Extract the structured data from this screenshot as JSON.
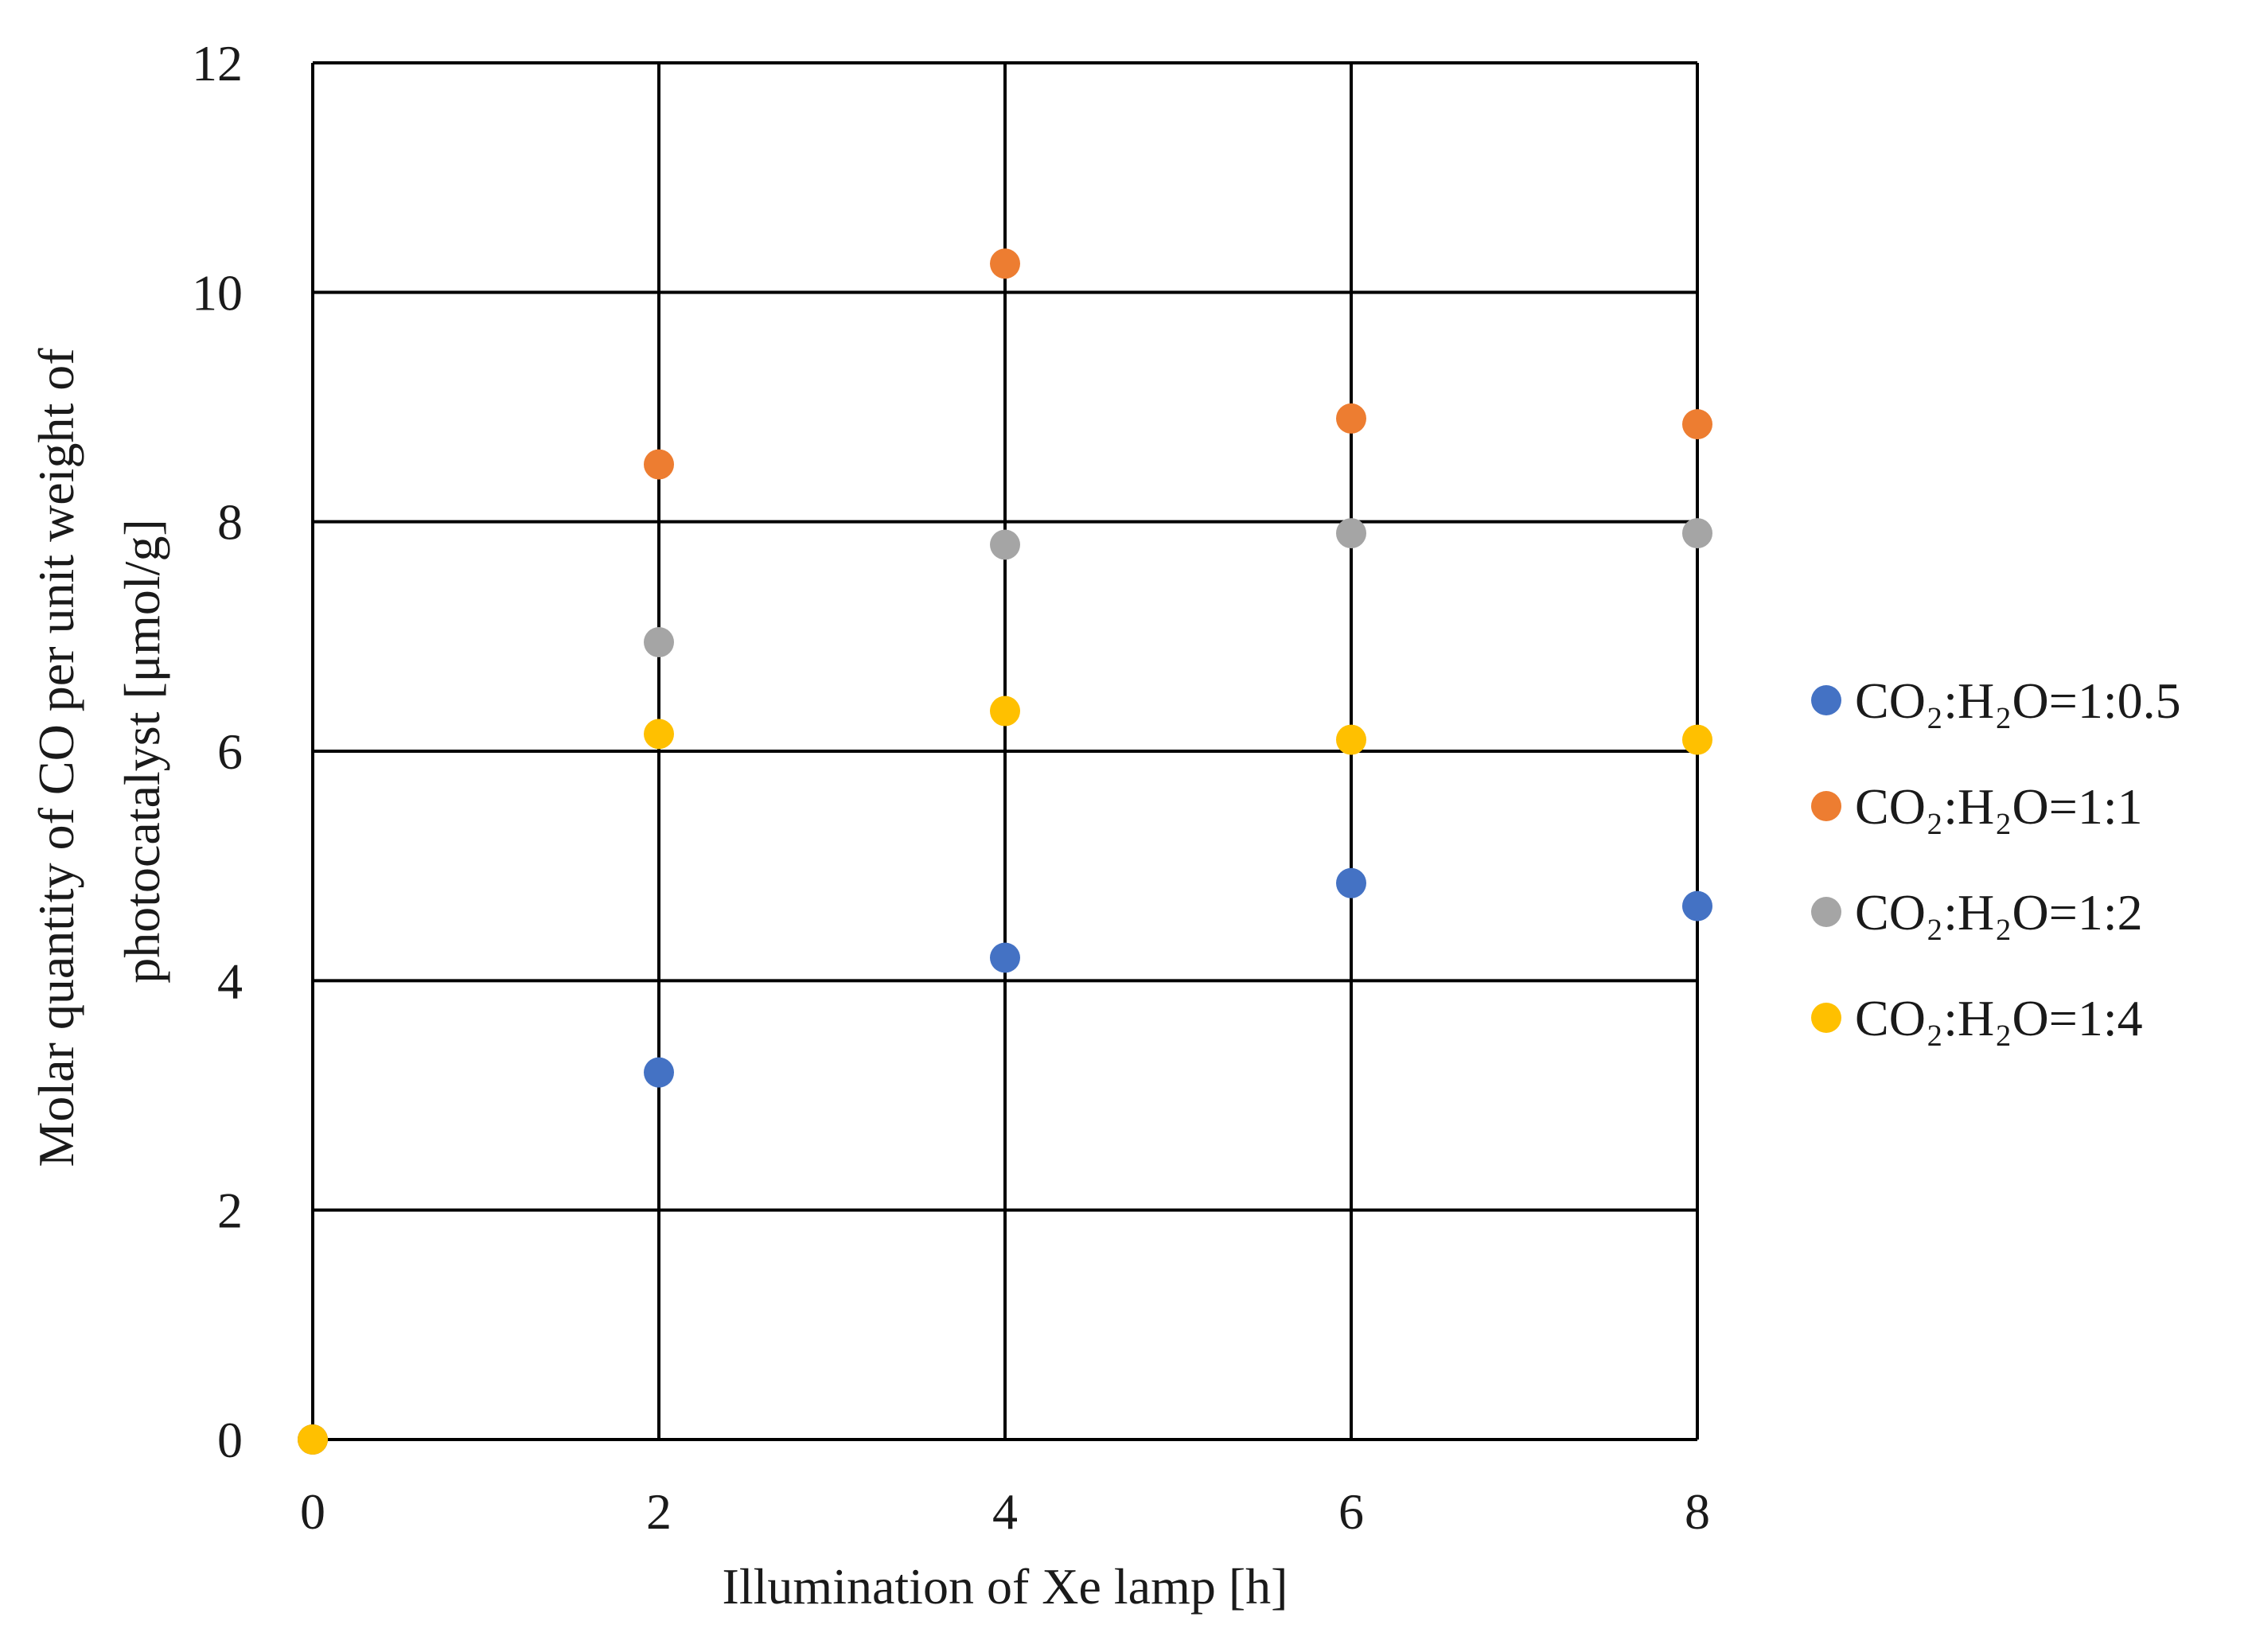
{
  "chart_data": {
    "type": "scatter",
    "title": "",
    "xlabel": "Illumination  of Xe lamp  [h]",
    "ylabel_lines": [
      "Molar quantity of CO  per unit weight of",
      "photocatalyst [μmol/g]"
    ],
    "xlim": [
      0,
      8
    ],
    "ylim": [
      0,
      12
    ],
    "x_ticks": [
      "0",
      "2",
      "4",
      "6",
      "8"
    ],
    "y_ticks": [
      "0",
      "2",
      "4",
      "6",
      "8",
      "10",
      "12"
    ],
    "grid": true,
    "legend_position": "right",
    "series": [
      {
        "name": "CO₂:H₂O=1:0.5",
        "color": "#4472C4",
        "x": [
          0,
          2,
          4,
          6,
          8
        ],
        "y": [
          0,
          3.2,
          4.2,
          4.85,
          4.65
        ]
      },
      {
        "name": "CO₂:H₂O=1:1",
        "color": "#ED7D31",
        "x": [
          0,
          2,
          4,
          6,
          8
        ],
        "y": [
          0,
          8.5,
          10.25,
          8.9,
          8.85
        ]
      },
      {
        "name": "CO₂:H₂O=1:2",
        "color": "#A5A5A5",
        "x": [
          0,
          2,
          4,
          6,
          8
        ],
        "y": [
          0,
          6.95,
          7.8,
          7.9,
          7.9
        ]
      },
      {
        "name": "CO₂:H₂O=1:4",
        "color": "#FFC000",
        "x": [
          0,
          2,
          4,
          6,
          8
        ],
        "y": [
          0,
          6.15,
          6.35,
          6.1,
          6.1
        ]
      }
    ]
  }
}
